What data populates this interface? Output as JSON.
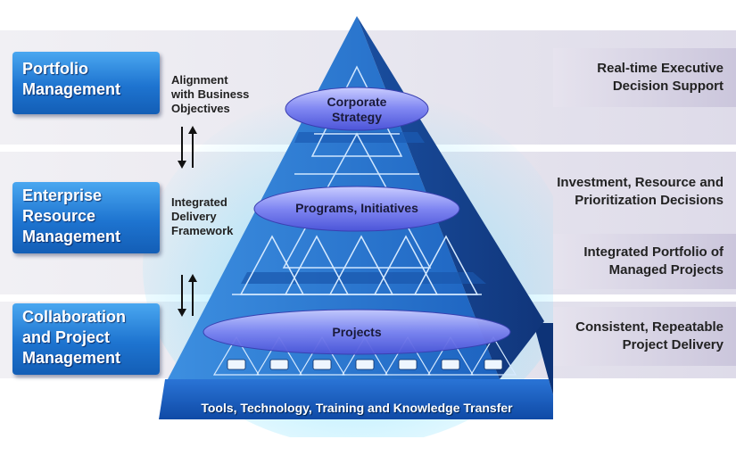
{
  "left_layers": [
    {
      "label": "Portfolio\nManagement"
    },
    {
      "label": "Enterprise\nResource\nManagement"
    },
    {
      "label": "Collaboration\nand Project\nManagement"
    }
  ],
  "side_labels": {
    "alignment": "Alignment\nwith Business\nObjectives",
    "integrated": "Integrated\nDelivery\nFramework"
  },
  "pyramid": {
    "tiers": [
      "Corporate\nStrategy",
      "Programs, Initiatives",
      "Projects"
    ],
    "base": "Tools, Technology, Training and Knowledge Transfer"
  },
  "outcomes": [
    "Real-time Executive\nDecision Support",
    "Investment, Resource and\nPrioritization Decisions",
    "Integrated Portfolio of\nManaged Projects",
    "Consistent, Repeatable\nProject Delivery"
  ]
}
